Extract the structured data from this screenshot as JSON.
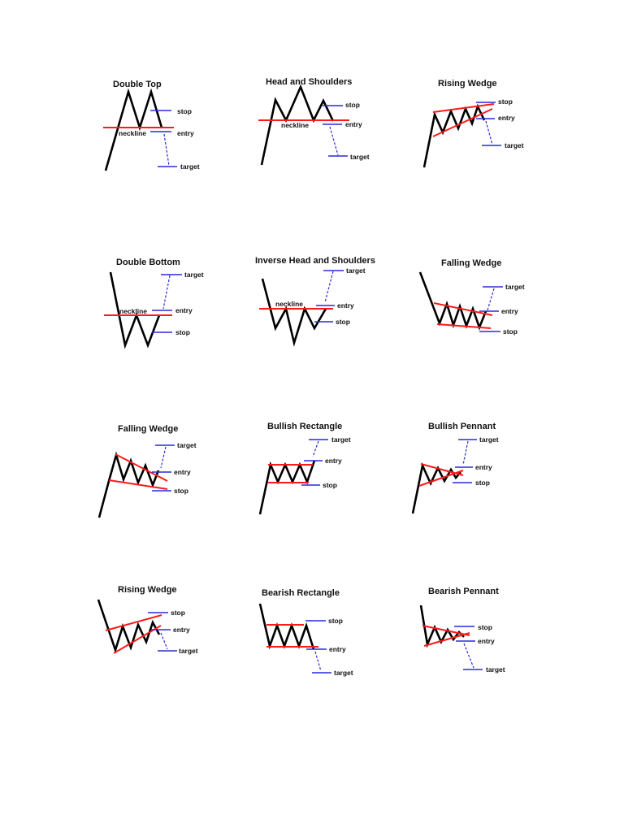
{
  "colors": {
    "price": "#000000",
    "trendline": "#ff1a1a",
    "level": "#2a2ad8",
    "text": "#111111"
  },
  "patterns": [
    {
      "id": "double-top",
      "title": "Double Top",
      "labels": {
        "neckline": "neckline",
        "stop": "stop",
        "entry": "entry",
        "target": "target"
      }
    },
    {
      "id": "head-and-shoulders",
      "title": "Head and Shoulders",
      "labels": {
        "neckline": "neckline",
        "stop": "stop",
        "entry": "entry",
        "target": "target"
      }
    },
    {
      "id": "rising-wedge-top",
      "title": "Rising Wedge",
      "labels": {
        "stop": "stop",
        "entry": "entry",
        "target": "target"
      }
    },
    {
      "id": "double-bottom",
      "title": "Double Bottom",
      "labels": {
        "neckline": "neckline",
        "target": "target",
        "entry": "entry",
        "stop": "stop"
      }
    },
    {
      "id": "inverse-head-and-shoulders",
      "title": "Inverse Head and Shoulders",
      "labels": {
        "neckline": "neckline",
        "target": "target",
        "entry": "entry",
        "stop": "stop"
      }
    },
    {
      "id": "falling-wedge-bottom",
      "title": "Falling Wedge",
      "labels": {
        "target": "target",
        "entry": "entry",
        "stop": "stop"
      }
    },
    {
      "id": "falling-wedge-continuation",
      "title": "Falling Wedge",
      "labels": {
        "target": "target",
        "entry": "entry",
        "stop": "stop"
      }
    },
    {
      "id": "bullish-rectangle",
      "title": "Bullish Rectangle",
      "labels": {
        "target": "target",
        "entry": "entry",
        "stop": "stop"
      }
    },
    {
      "id": "bullish-pennant",
      "title": "Bullish Pennant",
      "labels": {
        "target": "target",
        "entry": "entry",
        "stop": "stop"
      }
    },
    {
      "id": "rising-wedge-continuation",
      "title": "Rising Wedge",
      "labels": {
        "stop": "stop",
        "entry": "entry",
        "target": "target"
      }
    },
    {
      "id": "bearish-rectangle",
      "title": "Bearish Rectangle",
      "labels": {
        "stop": "stop",
        "entry": "entry",
        "target": "target"
      }
    },
    {
      "id": "bearish-pennant",
      "title": "Bearish Pennant",
      "labels": {
        "stop": "stop",
        "entry": "entry",
        "target": "target"
      }
    }
  ]
}
